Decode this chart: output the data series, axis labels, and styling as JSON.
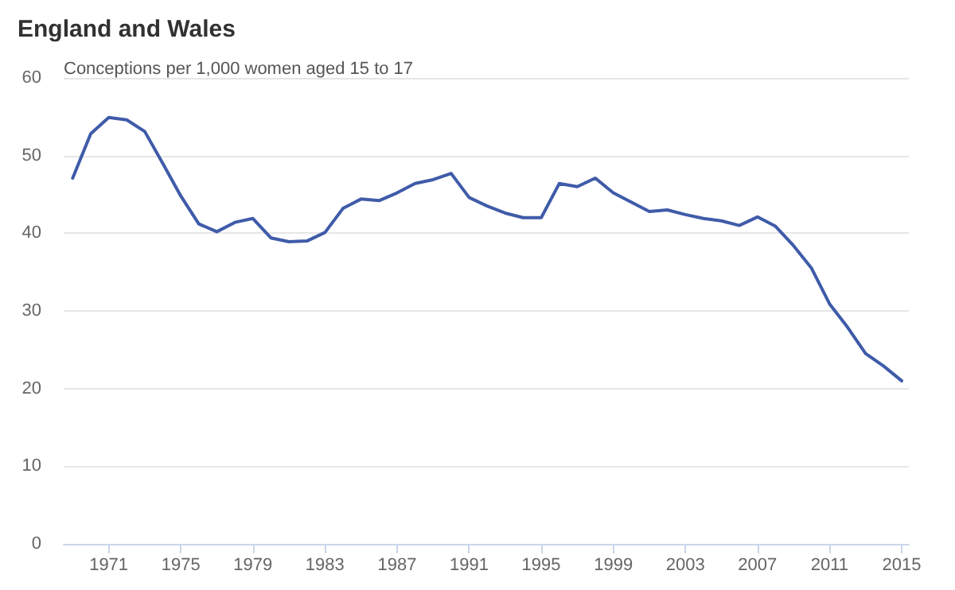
{
  "chart_data": {
    "type": "line",
    "title": "England and Wales",
    "ylabel": "Conceptions per 1,000 women aged 15 to 17",
    "x": [
      1969,
      1970,
      1971,
      1972,
      1973,
      1974,
      1975,
      1976,
      1977,
      1978,
      1979,
      1980,
      1981,
      1982,
      1983,
      1984,
      1985,
      1986,
      1987,
      1988,
      1989,
      1990,
      1991,
      1992,
      1993,
      1994,
      1995,
      1996,
      1997,
      1998,
      1999,
      2000,
      2001,
      2002,
      2003,
      2004,
      2005,
      2006,
      2007,
      2008,
      2009,
      2010,
      2011,
      2012,
      2013,
      2014,
      2015
    ],
    "series": [
      {
        "color": "#3f5ba9",
        "values": [
          47.1,
          52.8,
          54.9,
          54.6,
          53.1,
          49.0,
          44.8,
          41.2,
          40.2,
          41.4,
          41.9,
          39.4,
          38.9,
          39.0,
          40.1,
          43.2,
          44.4,
          44.2,
          45.2,
          46.4,
          46.9,
          47.7,
          44.6,
          43.5,
          42.6,
          42.0,
          42.0,
          46.4,
          46.0,
          47.1,
          45.2,
          44.0,
          42.8,
          43.0,
          42.4,
          41.9,
          41.6,
          41.0,
          42.1,
          40.9,
          38.4,
          35.5,
          30.9,
          27.9,
          24.5,
          22.9,
          21.0
        ]
      }
    ],
    "xlim": [
      1968.5,
      2015.4
    ],
    "xticks": [
      1971,
      1975,
      1979,
      1983,
      1987,
      1991,
      1995,
      1999,
      2003,
      2007,
      2011,
      2015
    ],
    "ylim": [
      0,
      60
    ],
    "yticks": [
      0,
      10,
      20,
      30,
      40,
      50,
      60
    ],
    "grid": "y",
    "marker": "none",
    "line_style": "solid"
  }
}
